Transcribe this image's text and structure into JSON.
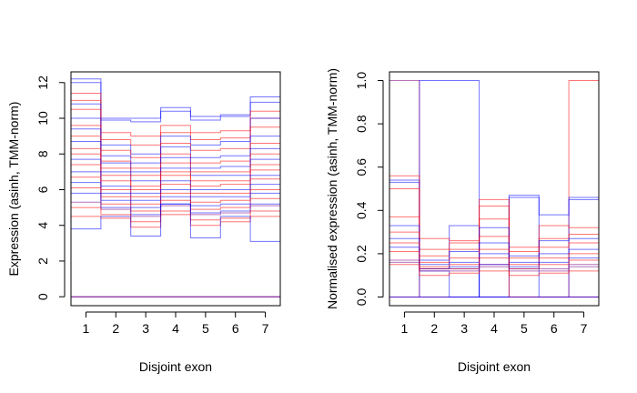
{
  "figure": {
    "background": "#ffffff"
  },
  "chart_data": [
    {
      "type": "line",
      "title": "",
      "xlabel": "Disjoint exon",
      "ylabel": "Expression (asinh, TMM-norm)",
      "categories": [
        "1",
        "2",
        "3",
        "4",
        "5",
        "6",
        "7"
      ],
      "x": [
        1,
        2,
        3,
        4,
        5,
        6,
        7
      ],
      "xlim": [
        0.5,
        7.5
      ],
      "ylim": [
        -0.5,
        12.6
      ],
      "yticks": [
        0,
        2,
        4,
        6,
        8,
        10,
        12
      ],
      "ytick_labels": [
        "0",
        "2",
        "4",
        "6",
        "8",
        "10",
        "12"
      ],
      "grid": false,
      "legend": "none",
      "colors": {
        "red_group": "#ff0000",
        "blue_group": "#0000ff",
        "overlap": "#7a0080"
      },
      "series": [
        {
          "color": "#0000ff",
          "values": [
            12.2,
            10.0,
            10.0,
            10.6,
            10.1,
            10.2,
            11.2
          ]
        },
        {
          "color": "#0000ff",
          "values": [
            12.0,
            9.9,
            9.8,
            10.4,
            9.9,
            10.1,
            10.9
          ]
        },
        {
          "color": "#ff0000",
          "values": [
            11.4,
            9.2,
            9.0,
            9.6,
            9.2,
            9.3,
            10.4
          ]
        },
        {
          "color": "#ff0000",
          "values": [
            11.0,
            8.8,
            8.5,
            9.2,
            8.8,
            8.9,
            10.0
          ]
        },
        {
          "color": "#0000ff",
          "values": [
            10.8,
            8.5,
            8.0,
            9.0,
            8.5,
            8.7,
            10.0
          ]
        },
        {
          "color": "#ff0000",
          "values": [
            10.5,
            8.2,
            7.8,
            8.6,
            8.2,
            8.3,
            9.5
          ]
        },
        {
          "color": "#0000ff",
          "values": [
            10.0,
            7.9,
            7.5,
            8.4,
            7.8,
            7.9,
            9.0
          ]
        },
        {
          "color": "#ff0000",
          "values": [
            9.6,
            7.6,
            7.2,
            8.0,
            7.5,
            7.6,
            8.6
          ]
        },
        {
          "color": "#0000ff",
          "values": [
            9.4,
            7.5,
            7.0,
            7.8,
            7.2,
            7.3,
            8.3
          ]
        },
        {
          "color": "#ff0000",
          "values": [
            9.0,
            7.2,
            6.8,
            7.5,
            7.0,
            7.0,
            8.0
          ]
        },
        {
          "color": "#0000ff",
          "values": [
            8.7,
            7.0,
            6.5,
            7.2,
            6.8,
            6.8,
            7.7
          ]
        },
        {
          "color": "#ff0000",
          "values": [
            8.3,
            6.8,
            6.2,
            7.0,
            6.5,
            6.5,
            7.4
          ]
        },
        {
          "color": "#ff0000",
          "values": [
            8.0,
            6.5,
            6.0,
            6.8,
            6.2,
            6.3,
            7.1
          ]
        },
        {
          "color": "#0000ff",
          "values": [
            7.7,
            6.2,
            5.8,
            6.5,
            6.0,
            6.0,
            6.8
          ]
        },
        {
          "color": "#ff0000",
          "values": [
            7.4,
            6.0,
            5.6,
            6.3,
            5.8,
            5.8,
            6.6
          ]
        },
        {
          "color": "#0000ff",
          "values": [
            7.0,
            5.8,
            5.4,
            6.0,
            5.6,
            5.6,
            6.3
          ]
        },
        {
          "color": "#ff0000",
          "values": [
            6.7,
            5.6,
            5.2,
            5.8,
            5.3,
            5.4,
            6.0
          ]
        },
        {
          "color": "#0000ff",
          "values": [
            6.4,
            5.4,
            5.0,
            5.6,
            5.1,
            5.2,
            5.8
          ]
        },
        {
          "color": "#ff0000",
          "values": [
            6.1,
            5.2,
            4.8,
            5.4,
            4.9,
            5.0,
            5.5
          ]
        },
        {
          "color": "#0000ff",
          "values": [
            5.8,
            5.0,
            4.6,
            5.2,
            4.7,
            4.8,
            5.2
          ]
        },
        {
          "color": "#7a0080",
          "values": [
            5.3,
            4.9,
            4.5,
            5.1,
            4.6,
            4.7,
            5.1
          ]
        },
        {
          "color": "#ff0000",
          "values": [
            5.0,
            4.6,
            4.2,
            4.8,
            4.3,
            4.4,
            4.8
          ]
        },
        {
          "color": "#ff0000",
          "values": [
            4.5,
            4.4,
            3.9,
            4.6,
            4.0,
            4.2,
            4.5
          ]
        },
        {
          "color": "#0000ff",
          "values": [
            3.8,
            4.5,
            3.4,
            5.2,
            3.3,
            4.5,
            3.1
          ]
        },
        {
          "color": "#ff0000",
          "values": [
            0,
            0,
            0,
            0,
            0,
            0,
            0
          ]
        },
        {
          "color": "#0000ff",
          "values": [
            0,
            0,
            0,
            0,
            0,
            0,
            0
          ]
        },
        {
          "color": "#7a0080",
          "values": [
            0,
            0,
            0,
            0,
            0,
            0,
            0
          ]
        }
      ]
    },
    {
      "type": "line",
      "title": "",
      "xlabel": "Disjoint exon",
      "ylabel": "Normalised expression (asinh, TMM-norm)",
      "categories": [
        "1",
        "2",
        "3",
        "4",
        "5",
        "6",
        "7"
      ],
      "x": [
        1,
        2,
        3,
        4,
        5,
        6,
        7
      ],
      "xlim": [
        0.5,
        7.5
      ],
      "ylim": [
        -0.04,
        1.04
      ],
      "yticks": [
        0.0,
        0.2,
        0.4,
        0.6,
        0.8,
        1.0
      ],
      "ytick_labels": [
        "0.0",
        "0.2",
        "0.4",
        "0.6",
        "0.8",
        "1.0"
      ],
      "grid": false,
      "legend": "none",
      "colors": {
        "red_group": "#ff0000",
        "blue_group": "#0000ff",
        "overlap": "#7a0080"
      },
      "series": [
        {
          "color": "#0000ff",
          "values": [
            0.0,
            1.0,
            1.0,
            0.0,
            0.0,
            0.0,
            0.0
          ]
        },
        {
          "color": "#ff0000",
          "values": [
            0.0,
            0.0,
            0.0,
            0.0,
            0.0,
            0.0,
            1.0
          ]
        },
        {
          "color": "#7a0080",
          "values": [
            1.0,
            0.0,
            0.0,
            0.0,
            0.0,
            0.0,
            0.0
          ]
        },
        {
          "color": "#0000ff",
          "values": [
            0.54,
            0.13,
            0.33,
            0.0,
            0.47,
            0.38,
            0.46
          ]
        },
        {
          "color": "#0000ff",
          "values": [
            0.53,
            0.12,
            0.0,
            0.15,
            0.46,
            0.0,
            0.45
          ]
        },
        {
          "color": "#ff0000",
          "values": [
            0.56,
            0.27,
            0.26,
            0.45,
            0.0,
            0.0,
            0.0
          ]
        },
        {
          "color": "#ff0000",
          "values": [
            0.5,
            0.22,
            0.25,
            0.42,
            0.23,
            0.33,
            0.32
          ]
        },
        {
          "color": "#ff0000",
          "values": [
            0.37,
            0.19,
            0.22,
            0.36,
            0.21,
            0.27,
            0.29
          ]
        },
        {
          "color": "#0000ff",
          "values": [
            0.33,
            0.17,
            0.21,
            0.32,
            0.19,
            0.26,
            0.27
          ]
        },
        {
          "color": "#ff0000",
          "values": [
            0.3,
            0.16,
            0.18,
            0.28,
            0.18,
            0.23,
            0.25
          ]
        },
        {
          "color": "#0000ff",
          "values": [
            0.27,
            0.15,
            0.16,
            0.25,
            0.16,
            0.2,
            0.22
          ]
        },
        {
          "color": "#ff0000",
          "values": [
            0.25,
            0.14,
            0.15,
            0.22,
            0.15,
            0.18,
            0.2
          ]
        },
        {
          "color": "#0000ff",
          "values": [
            0.23,
            0.13,
            0.14,
            0.2,
            0.14,
            0.16,
            0.18
          ]
        },
        {
          "color": "#ff0000",
          "values": [
            0.21,
            0.13,
            0.13,
            0.18,
            0.13,
            0.15,
            0.17
          ]
        },
        {
          "color": "#7a0080",
          "values": [
            0.17,
            0.13,
            0.13,
            0.15,
            0.13,
            0.13,
            0.15
          ]
        },
        {
          "color": "#7a0080",
          "values": [
            0.16,
            0.12,
            0.12,
            0.14,
            0.12,
            0.12,
            0.14
          ]
        },
        {
          "color": "#ff0000",
          "values": [
            0.15,
            0.1,
            0.11,
            0.12,
            0.1,
            0.11,
            0.12
          ]
        },
        {
          "color": "#0000ff",
          "values": [
            0.0,
            0.0,
            0.0,
            0.0,
            0.0,
            0.0,
            0.0
          ]
        }
      ]
    }
  ]
}
